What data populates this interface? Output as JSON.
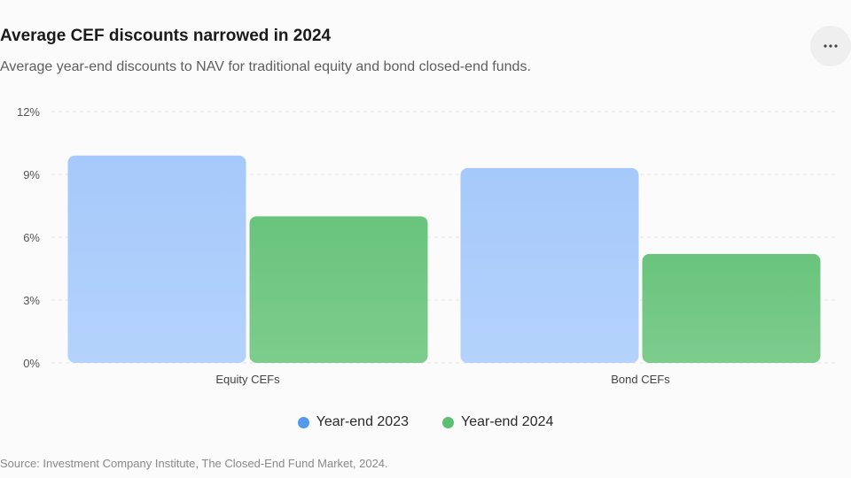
{
  "header": {
    "title": "Average CEF discounts narrowed in 2024",
    "subtitle": "Average year-end discounts to NAV for traditional equity and bond closed-end funds.",
    "more_icon": "more-horizontal-icon"
  },
  "footer": {
    "source": "Source: Investment Company Institute, The Closed-End Fund Market, 2024."
  },
  "colors": {
    "series_2023": "#a3c8fa",
    "series_2024": "#6cc67f",
    "legend_2023": "#5599ee",
    "legend_2024": "#5cbf72",
    "grid": "#e3e3e3"
  },
  "chart_data": {
    "type": "bar",
    "title": "Average CEF discounts narrowed in 2024",
    "subtitle": "Average year-end discounts to NAV for traditional equity and bond closed-end funds.",
    "categories": [
      "Equity CEFs",
      "Bond CEFs"
    ],
    "series": [
      {
        "name": "Year-end 2023",
        "values": [
          9.9,
          9.3
        ]
      },
      {
        "name": "Year-end 2024",
        "values": [
          7.0,
          5.2
        ]
      }
    ],
    "ylim": [
      0,
      12
    ],
    "yticks": [
      0,
      3,
      6,
      9,
      12
    ],
    "ytick_labels": [
      "0%",
      "3%",
      "6%",
      "9%",
      "12%"
    ],
    "xlabel": "",
    "ylabel": "",
    "grid": true,
    "legend": "bottom-center"
  }
}
